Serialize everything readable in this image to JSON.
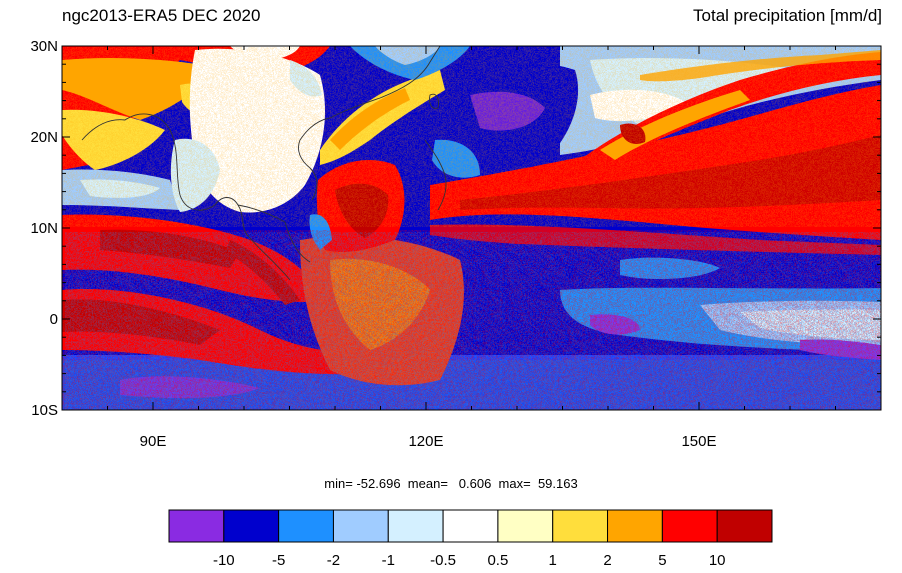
{
  "title_left": "ngc2013-ERA5 DEC 2020",
  "title_right": "Total precipitation [mm/d]",
  "stats": {
    "min_label": "min=",
    "min": "-52.696",
    "mean_label": "mean=",
    "mean": "0.606",
    "max_label": "max=",
    "max": "59.163"
  },
  "map": {
    "lon_range": [
      80,
      170
    ],
    "lat_range": [
      -10,
      30
    ],
    "lat_ticks": [
      {
        "value": 30,
        "label": "30N"
      },
      {
        "value": 20,
        "label": "20N"
      },
      {
        "value": 10,
        "label": "10N"
      },
      {
        "value": 0,
        "label": "0"
      },
      {
        "value": -10,
        "label": "10S"
      }
    ],
    "lon_ticks": [
      {
        "value": 90,
        "label": "90E"
      },
      {
        "value": 120,
        "label": "120E"
      },
      {
        "value": 150,
        "label": "150E"
      }
    ]
  },
  "colorbar": {
    "labels": [
      "-10",
      "-5",
      "-2",
      "-1",
      "-0.5",
      "0.5",
      "1",
      "2",
      "5",
      "10"
    ],
    "colors": [
      "#8a2be2",
      "#0000cd",
      "#1e90ff",
      "#a0ccff",
      "#d4f0ff",
      "#ffffff",
      "#ffffc4",
      "#ffde3c",
      "#ffa500",
      "#ff0000",
      "#c00000"
    ]
  }
}
